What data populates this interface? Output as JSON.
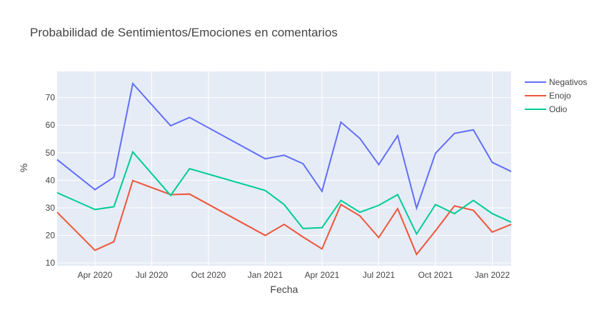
{
  "chart_data": {
    "type": "line",
    "title": "Probabilidad de Sentimientos/Emociones en comentarios",
    "x_label": "Fecha",
    "y_label": "%",
    "x": [
      "2020-02",
      "2020-04",
      "2020-05",
      "2020-06",
      "2020-08",
      "2020-09",
      "2021-01",
      "2021-02",
      "2021-03",
      "2021-04",
      "2021-05",
      "2021-06",
      "2021-07",
      "2021-08",
      "2021-09",
      "2021-10",
      "2021-11",
      "2021-12",
      "2022-01",
      "2022-02"
    ],
    "series": [
      {
        "name": "Negativos",
        "color": "#636efa",
        "values": [
          47.5,
          36.6,
          41.1,
          75.1,
          59.8,
          62.8,
          47.8,
          49.1,
          46.0,
          36.0,
          61.1,
          55.2,
          45.7,
          56.2,
          29.9,
          49.8,
          57.0,
          58.3,
          46.5,
          43.2
        ]
      },
      {
        "name": "Enojo",
        "color": "#ef553b",
        "values": [
          28.4,
          14.6,
          17.7,
          39.9,
          34.8,
          35.0,
          20.0,
          24.0,
          19.4,
          15.1,
          31.2,
          27.1,
          19.2,
          29.7,
          13.1,
          21.7,
          30.7,
          29.1,
          21.2,
          24.0
        ]
      },
      {
        "name": "Odio",
        "color": "#00cc96",
        "values": [
          35.5,
          29.4,
          30.4,
          50.3,
          34.5,
          44.2,
          36.3,
          31.2,
          22.5,
          22.8,
          32.7,
          28.4,
          30.9,
          34.8,
          20.5,
          31.2,
          27.9,
          32.7,
          27.9,
          24.8
        ]
      }
    ],
    "xlim": [
      "2020-02",
      "2022-02"
    ],
    "xticks": [
      {
        "value": "2020-04",
        "label": "Apr 2020"
      },
      {
        "value": "2020-07",
        "label": "Jul 2020"
      },
      {
        "value": "2020-10",
        "label": "Oct 2020"
      },
      {
        "value": "2021-01",
        "label": "Jan 2021"
      },
      {
        "value": "2021-04",
        "label": "Apr 2021"
      },
      {
        "value": "2021-07",
        "label": "Jul 2021"
      },
      {
        "value": "2021-10",
        "label": "Oct 2021"
      },
      {
        "value": "2022-01",
        "label": "Jan 2022"
      }
    ],
    "ylim": [
      9,
      79.5
    ],
    "yticks": [
      10,
      20,
      30,
      40,
      50,
      60,
      70
    ],
    "grid": true
  }
}
